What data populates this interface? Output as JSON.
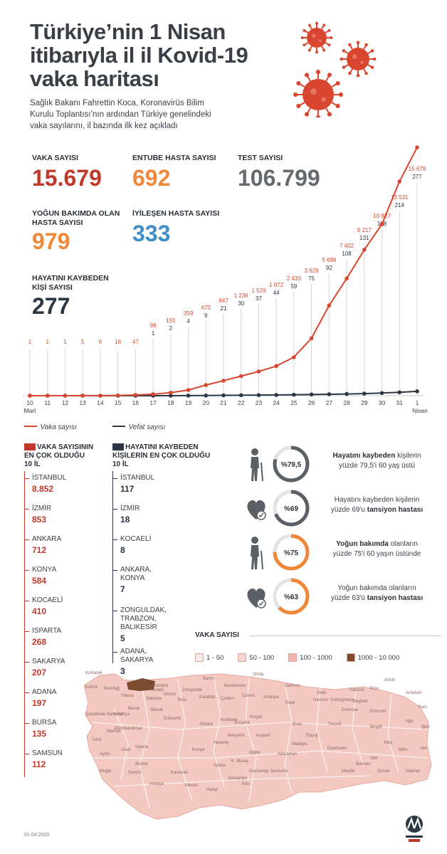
{
  "header": {
    "title_line1": "Türkiye’nin 1 Nisan",
    "title_line2": "itibarıyla il il Kovid-19",
    "title_line3": "vaka haritası",
    "subtitle_line1": "Sağlık Bakanı Fahrettin Koca, Koronavirüs Bilim",
    "subtitle_line2": "Kurulu Toplantısı’nın ardından Türkiye genelindeki",
    "subtitle_line3": "vaka sayılarını, il bazında ilk kez açıkladı"
  },
  "stats": {
    "cases": {
      "label": "VAKA SAYISI",
      "value": "15.679"
    },
    "intubated": {
      "label": "ENTUBE HASTA SAYISI",
      "value": "692"
    },
    "tests": {
      "label": "TEST SAYISI",
      "value": "106.799"
    },
    "icu": {
      "label_line1": "YOĞUN BAKIMDA OLAN",
      "label_line2": "HASTA SAYISI",
      "value": "979"
    },
    "recovered": {
      "label": "İYİLEŞEN HASTA SAYISI",
      "value": "333"
    },
    "deaths": {
      "label_line1": "HAYATINI KAYBEDEN",
      "label_line2": "KİŞİ SAYISI",
      "value": "277"
    }
  },
  "chart_data": {
    "type": "line",
    "x": [
      "10",
      "11",
      "12",
      "13",
      "14",
      "15",
      "16",
      "17",
      "18",
      "19",
      "20",
      "21",
      "22",
      "23",
      "24",
      "25",
      "26",
      "27",
      "28",
      "29",
      "30",
      "31",
      "1"
    ],
    "x_month_start": "Mart",
    "x_month_end": "Nisan",
    "series": [
      {
        "name": "Vaka sayısı",
        "color": "#d9462f",
        "values": [
          1,
          1,
          1,
          5,
          6,
          18,
          47,
          98,
          191,
          359,
          670,
          947,
          1236,
          1529,
          1872,
          2433,
          3629,
          5698,
          7402,
          9217,
          10827,
          13531,
          15679
        ],
        "labels": [
          "1",
          "1",
          "1",
          "5",
          "6",
          "18",
          "47",
          "98",
          "191",
          "359",
          "670",
          "947",
          "1 236",
          "1 529",
          "1 872",
          "2 433",
          "3 629",
          "5 698",
          "7 402",
          "9 217",
          "10 827",
          "13 531",
          "15 679"
        ]
      },
      {
        "name": "Vefat sayısı",
        "color": "#2b3644",
        "values": [
          0,
          0,
          0,
          0,
          0,
          0,
          0,
          1,
          2,
          4,
          9,
          21,
          30,
          37,
          44,
          59,
          75,
          92,
          108,
          131,
          168,
          214,
          277
        ],
        "labels": [
          "",
          "",
          "",
          "",
          "",
          "",
          "",
          "1",
          "2",
          "4",
          "9",
          "21",
          "30",
          "37",
          "44",
          "59",
          "75",
          "92",
          "108",
          "131",
          "168",
          "214",
          "277"
        ]
      }
    ],
    "ylim": [
      0,
      16000
    ],
    "grid": false,
    "legend": "bottom-left"
  },
  "cases_top10": {
    "head_line1": "VAKA SAYISININ",
    "head_line2": "EN ÇOK OLDUĞU",
    "head_line3": "10 İL",
    "items": [
      {
        "name": "İSTANBUL",
        "value": "8.852"
      },
      {
        "name": "İZMİR",
        "value": "853"
      },
      {
        "name": "ANKARA",
        "value": "712"
      },
      {
        "name": "KONYA",
        "value": "584"
      },
      {
        "name": "KOCAELİ",
        "value": "410"
      },
      {
        "name": "ISPARTA",
        "value": "268"
      },
      {
        "name": "SAKARYA",
        "value": "207"
      },
      {
        "name": "ADANA",
        "value": "197"
      },
      {
        "name": "BURSA",
        "value": "135"
      },
      {
        "name": "SAMSUN",
        "value": "112"
      }
    ]
  },
  "deaths_top10": {
    "head_line1": "HAYATINI KAYBEDEN",
    "head_line2": "KİŞİLERİN EN ÇOK OLDUĞU",
    "head_line3": "10 İL",
    "items": [
      {
        "name1": "İSTANBUL",
        "name2": "",
        "name3": "",
        "value": "117"
      },
      {
        "name1": "İZMİR",
        "name2": "",
        "name3": "",
        "value": "18"
      },
      {
        "name1": "KOCAELİ",
        "name2": "",
        "name3": "",
        "value": "8"
      },
      {
        "name1": "ANKARA,",
        "name2": "KONYA",
        "name3": "",
        "value": "7"
      },
      {
        "name1": "ZONGULDAK,",
        "name2": "TRABZON,",
        "name3": "BALIKESİR",
        "value": "5"
      },
      {
        "name1": "ADANA,",
        "name2": "SAKARYA",
        "name3": "",
        "value": "3"
      }
    ]
  },
  "circles": [
    {
      "pct_label": "%79,5",
      "fraction": 0.795,
      "color": "#5b5f66",
      "icon": "elderly-person-icon",
      "line1_pre": "",
      "line1_bold": "Hayatını kaybeden",
      "line1_post": " kişilerin",
      "line2_pre": "yüzde 79,5'i 60 yaş üstü",
      "line2_bold": ""
    },
    {
      "pct_label": "%69",
      "fraction": 0.69,
      "color": "#5b5f66",
      "icon": "heart-pulse-icon",
      "line1_pre": "Hayatını kaybeden kişilerin",
      "line1_bold": "",
      "line1_post": "",
      "line2_pre": "yüzde 69'u ",
      "line2_bold": "tansiyon hastası"
    },
    {
      "pct_label": "%75",
      "fraction": 0.75,
      "color": "#f0883a",
      "icon": "elderly-person-icon",
      "line1_pre": "",
      "line1_bold": "Yoğun bakımda",
      "line1_post": " olanların",
      "line2_pre": "yüzde 75'i 60 yaşın üstünde",
      "line2_bold": ""
    },
    {
      "pct_label": "%63",
      "fraction": 0.63,
      "color": "#f0883a",
      "icon": "heart-pulse-icon",
      "line1_pre": "Yoğun bakımda olanların",
      "line1_bold": "",
      "line1_post": "",
      "line2_pre": "yüzde 63'ü ",
      "line2_bold": "tansiyon hastası"
    }
  ],
  "map": {
    "legend_title": "VAKA SAYISI",
    "legend": [
      {
        "label": "1 - 50",
        "color": "#fbe9e6"
      },
      {
        "label": "50 - 100",
        "color": "#f6d4cf"
      },
      {
        "label": "100 - 1000",
        "color": "#efb5ad"
      },
      {
        "label": "1000 - 10 000",
        "color": "#7a4b2f"
      }
    ],
    "base_color": "#f3c9c2",
    "high_color": "#7a4b2f",
    "cities": [
      "Kırklareli",
      "Edirne",
      "Tekirdağ",
      "İstanbul",
      "Zonguldak",
      "Bartın",
      "Kastamonu",
      "Sinop",
      "Samsun",
      "Ordu",
      "Trabzon",
      "Rize",
      "Artvin",
      "Ardahan",
      "Kars",
      "Iğdır",
      "Ağrı",
      "Erzurum",
      "Erzincan",
      "Bayburt",
      "Gümüşhane",
      "Giresun",
      "Tokat",
      "Amasya",
      "Çorum",
      "Çankırı",
      "Karabük",
      "Bolu",
      "Düzce",
      "Sakarya",
      "Kocaeli",
      "Yalova",
      "Bursa",
      "Bilecik",
      "Eskişehir",
      "Ankara",
      "Kırıkkale",
      "Yozgat",
      "Sivas",
      "Tunceli",
      "Bingöl",
      "Muş",
      "Bitlis",
      "Van",
      "Hakkari",
      "Şırnak",
      "Siirt",
      "Batman",
      "Mardin",
      "Diyarbakır",
      "Elazığ",
      "Malatya",
      "Adıyaman",
      "Şanlıurfa",
      "Gaziantep",
      "Kilis",
      "Hatay",
      "Osmaniye",
      "K. Maraş",
      "Adana",
      "Mersin",
      "Karaman",
      "Konya",
      "Aksaray",
      "Nevşehir",
      "Kırşehir",
      "Kayseri",
      "Niğde",
      "Antalya",
      "Burdur",
      "Isparta",
      "Afyonkarahisar",
      "Kütahya",
      "Uşak",
      "Denizli",
      "Muğla",
      "Aydın",
      "İzmir",
      "Manisa",
      "Balıkesir",
      "Çanakkale"
    ]
  },
  "footer": {
    "date": "01.04.2020"
  }
}
